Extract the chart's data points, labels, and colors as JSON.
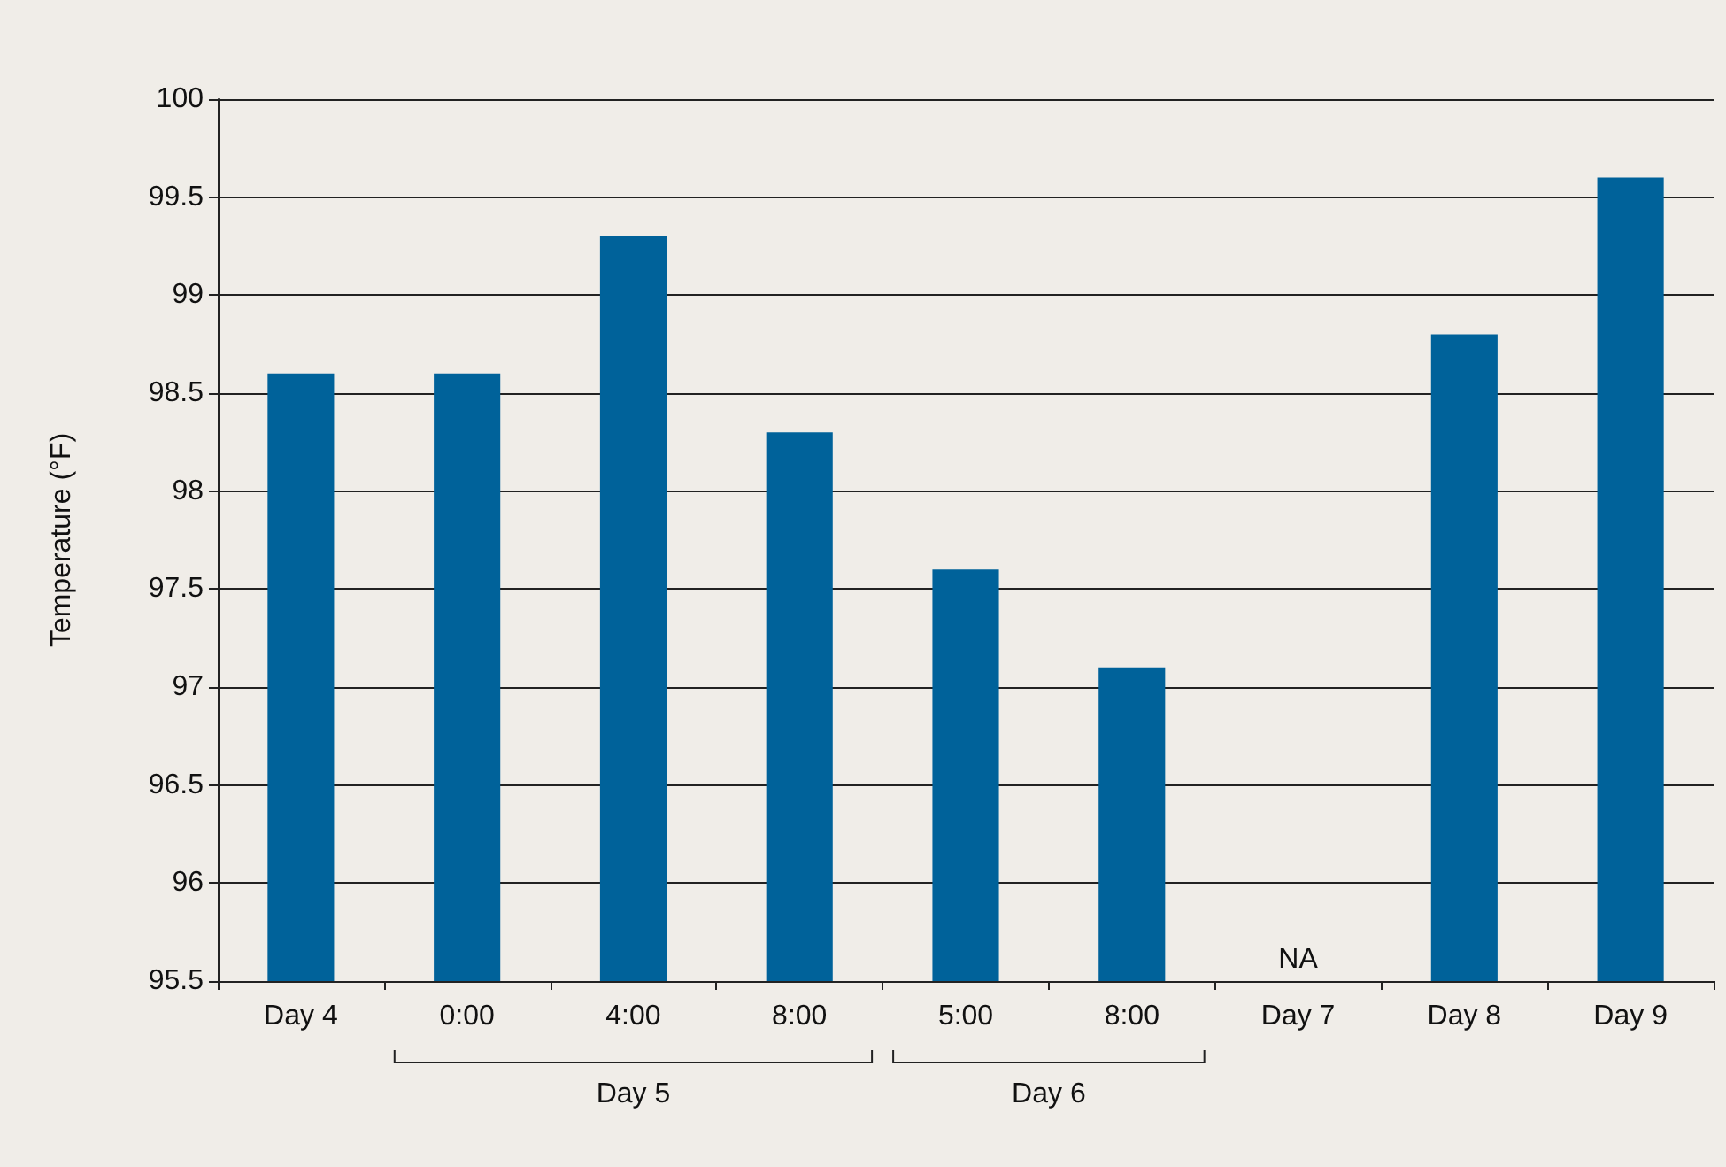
{
  "chart_data": {
    "type": "bar",
    "ylabel": "Temperature (°F)",
    "categories": [
      "Day 4",
      "0:00",
      "4:00",
      "8:00",
      "5:00",
      "8:00",
      "Day 7",
      "Day 8",
      "Day 9"
    ],
    "values": [
      98.6,
      98.6,
      99.3,
      98.3,
      97.6,
      97.1,
      null,
      98.8,
      99.6
    ],
    "color": "#00629a",
    "ylim": [
      95.5,
      100
    ],
    "yticks": [
      95.5,
      96,
      96.5,
      97,
      97.5,
      98,
      98.5,
      99,
      99.5,
      100
    ],
    "grid": "y",
    "annotations": [
      "Day 5",
      "Day 6",
      "NA"
    ]
  }
}
